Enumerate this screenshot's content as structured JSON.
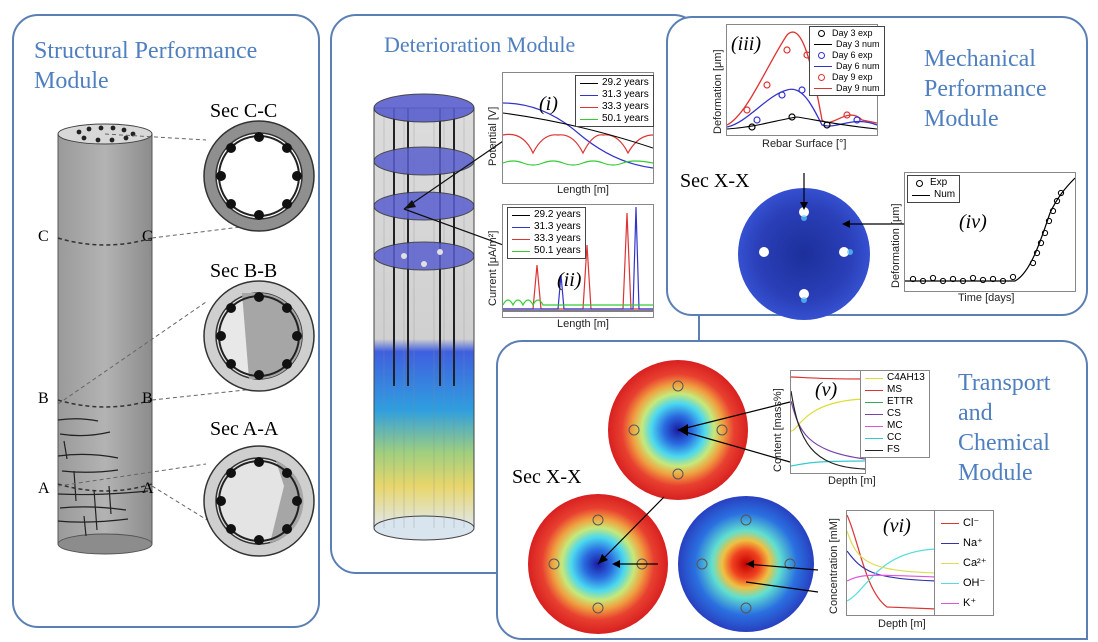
{
  "modules": {
    "structural": "Structural Performance Module",
    "deterioration": "Deterioration Module",
    "mechanical": "Mechanical Performance Module",
    "transport": "Transport and Chemical Module"
  },
  "sections": {
    "cc": "Sec C-C",
    "bb": "Sec B-B",
    "aa": "Sec A-A",
    "xx_mech": "Sec X-X",
    "xx_trans": "Sec X-X"
  },
  "column_marks": {
    "c": "C",
    "b": "B",
    "a": "A"
  },
  "plots": {
    "i": {
      "roman": "(i)",
      "ylabel": "Potential [V]",
      "xlabel": "Length [m]",
      "legend": [
        {
          "label": "29.2 years",
          "color": "#000000"
        },
        {
          "label": "31.3 years",
          "color": "#3333cc"
        },
        {
          "label": "33.3 years",
          "color": "#dd3333"
        },
        {
          "label": "50.1 years",
          "color": "#33cc33"
        }
      ]
    },
    "ii": {
      "roman": "(ii)",
      "ylabel": "Current [μA/m²]",
      "xlabel": "Length [m]",
      "legend": [
        {
          "label": "29.2 years",
          "color": "#000000"
        },
        {
          "label": "31.3 years",
          "color": "#3333cc"
        },
        {
          "label": "33.3 years",
          "color": "#dd3333"
        },
        {
          "label": "50.1 years",
          "color": "#33cc33"
        }
      ]
    },
    "iii": {
      "roman": "(iii)",
      "ylabel": "Deformation [μm]",
      "xlabel": "Rebar Surface [°]",
      "legend": [
        {
          "label": "Day 3 exp",
          "color": "#000000",
          "marker": "circle"
        },
        {
          "label": "Day 3 num",
          "color": "#000000",
          "marker": "line"
        },
        {
          "label": "Day 6 exp",
          "color": "#3333cc",
          "marker": "circle"
        },
        {
          "label": "Day 6 num",
          "color": "#3333cc",
          "marker": "line"
        },
        {
          "label": "Day 9 exp",
          "color": "#dd3333",
          "marker": "circle"
        },
        {
          "label": "Day 9 num",
          "color": "#dd3333",
          "marker": "line"
        }
      ]
    },
    "iv": {
      "roman": "(iv)",
      "ylabel": "Deformation [μm]",
      "xlabel": "Time [days]",
      "legend": [
        {
          "label": "Exp",
          "color": "#000000",
          "marker": "circle"
        },
        {
          "label": "Num",
          "color": "#000000",
          "marker": "line"
        }
      ]
    },
    "v": {
      "roman": "(v)",
      "ylabel": "Content [mass%]",
      "xlabel": "Depth [m]",
      "legend": [
        {
          "label": "C4AH13",
          "color": "#dddd33"
        },
        {
          "label": "MS",
          "color": "#dd3333"
        },
        {
          "label": "ETTR",
          "color": "#33aa55"
        },
        {
          "label": "CS",
          "color": "#7744aa"
        },
        {
          "label": "MC",
          "color": "#dd55dd"
        },
        {
          "label": "CC",
          "color": "#33cccc"
        },
        {
          "label": "FS",
          "color": "#222222"
        }
      ]
    },
    "vi": {
      "roman": "(vi)",
      "ylabel": "Concentration [mM]",
      "xlabel": "Depth [m]",
      "legend": [
        {
          "label": "Cl⁻",
          "color": "#dd3333"
        },
        {
          "label": "Na⁺",
          "color": "#3333aa"
        },
        {
          "label": "Ca²⁺",
          "color": "#dddd55"
        },
        {
          "label": "OH⁻",
          "color": "#55dddd"
        },
        {
          "label": "K⁺",
          "color": "#dd55dd"
        }
      ]
    }
  },
  "colors": {
    "panel_border": "#5b7fb5",
    "title": "#4f7fbf"
  }
}
